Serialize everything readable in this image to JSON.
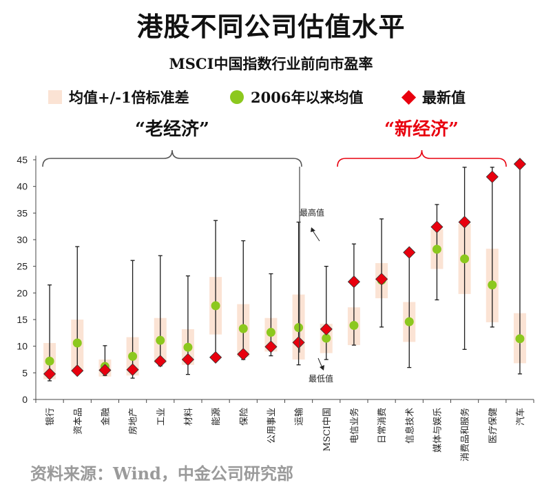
{
  "title": "港股不同公司估值水平",
  "subtitle": "MSCI中国指数行业前向市盈率",
  "legend": {
    "band": "均值+/-1倍标准差",
    "mean": "2006年以来均值",
    "latest": "最新值"
  },
  "groups": {
    "old": "“老经济”",
    "new": "“新经济”"
  },
  "annotations": {
    "max": "最高值",
    "min": "最低值"
  },
  "source": "资料来源：Wind，中金公司研究部",
  "colors": {
    "band": "#fbe3d4",
    "mean": "#8cc81e",
    "latest": "#e8000e",
    "old_bracket": "#555555",
    "new_bracket": "#e8000e",
    "new_label": "#e8000e"
  },
  "chart_data": {
    "type": "range-dot",
    "ylim": [
      0,
      45
    ],
    "yticks": [
      0,
      5,
      10,
      15,
      20,
      25,
      30,
      35,
      40,
      45
    ],
    "grid": false,
    "legend_position": "top",
    "categories": [
      "银行",
      "资本品",
      "金融",
      "房地产",
      "工业",
      "材料",
      "能源",
      "保险",
      "公用事业",
      "运输",
      "MSCI中国",
      "电信业务",
      "日常消费",
      "信息技术",
      "媒体与娱乐",
      "消费品和服务",
      "医疗保健",
      "汽车"
    ],
    "series": [
      {
        "name": "均值+/-1倍标准差",
        "type": "band",
        "low": [
          3.8,
          5.5,
          4.3,
          4.5,
          6.8,
          6.5,
          12.2,
          8.0,
          9.0,
          7.5,
          8.7,
          10.2,
          19.0,
          10.8,
          24.5,
          19.8,
          14.5,
          6.8
        ],
        "high": [
          10.6,
          15.0,
          7.5,
          11.7,
          15.3,
          13.2,
          23.0,
          17.9,
          15.3,
          19.7,
          14.2,
          17.3,
          25.6,
          18.3,
          32.0,
          33.0,
          28.3,
          16.2
        ]
      },
      {
        "name": "最高值",
        "type": "max",
        "values": [
          21.5,
          28.7,
          10.1,
          26.1,
          27.0,
          23.2,
          33.6,
          29.8,
          23.6,
          33.3,
          25.0,
          29.2,
          33.9,
          27.9,
          36.6,
          43.6,
          43.6,
          44.5
        ]
      },
      {
        "name": "最低值",
        "type": "min",
        "values": [
          3.5,
          4.8,
          4.5,
          4.0,
          6.3,
          4.7,
          7.2,
          7.5,
          8.2,
          6.5,
          7.5,
          10.2,
          13.6,
          6.0,
          18.7,
          9.4,
          13.6,
          4.8
        ]
      },
      {
        "name": "2006年以来均值",
        "type": "mean",
        "values": [
          7.2,
          10.6,
          6.2,
          8.1,
          11.1,
          9.8,
          17.6,
          13.3,
          12.6,
          13.5,
          11.5,
          13.9,
          22.4,
          14.6,
          28.2,
          26.4,
          21.5,
          11.4
        ]
      },
      {
        "name": "最新值",
        "type": "latest",
        "values": [
          4.8,
          5.4,
          5.5,
          5.6,
          7.2,
          7.5,
          7.9,
          8.5,
          9.9,
          10.7,
          13.2,
          22.1,
          22.6,
          27.6,
          32.4,
          33.3,
          41.8,
          44.2
        ]
      }
    ]
  }
}
